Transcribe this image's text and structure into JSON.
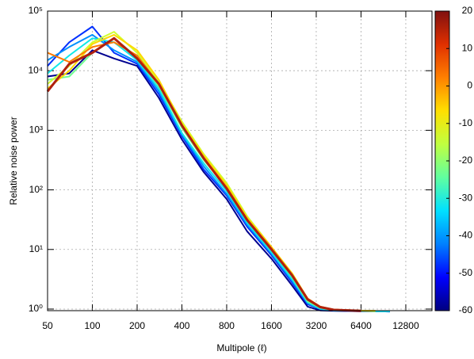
{
  "chart_data": {
    "type": "line",
    "xlabel": "Multipole (ℓ)",
    "ylabel": "Relative noise power",
    "log_x": true,
    "log_y": true,
    "grid": true,
    "xlim": [
      50,
      19200
    ],
    "ylim": [
      0.94,
      100000
    ],
    "xticks": [
      50,
      100,
      200,
      400,
      800,
      1600,
      3200,
      6400,
      12800
    ],
    "yticks": [
      {
        "value": 1,
        "label": "10⁰"
      },
      {
        "value": 10,
        "label": "10¹"
      },
      {
        "value": 100,
        "label": "10²"
      },
      {
        "value": 1000,
        "label": "10³"
      },
      {
        "value": 10000,
        "label": "10⁴"
      },
      {
        "value": 100000,
        "label": "10⁵"
      }
    ],
    "x": [
      50,
      70,
      100,
      140,
      200,
      280,
      400,
      560,
      800,
      1100,
      1600,
      2200,
      2800,
      3400,
      4200,
      6400,
      8000,
      10000
    ],
    "series": [
      {
        "color": "#00008f",
        "values": [
          8000,
          9000,
          22000,
          16000,
          12000,
          3500,
          700,
          200,
          70,
          20,
          7,
          2.5,
          1.1,
          0.95,
          0.93,
          0.92,
          0.92,
          0.91
        ]
      },
      {
        "color": "#0030ff",
        "values": [
          12000,
          30000,
          55000,
          20000,
          13000,
          4000,
          800,
          220,
          80,
          24,
          8,
          2.8,
          1.2,
          1.0,
          0.94,
          0.92,
          0.92,
          0.91
        ]
      },
      {
        "color": "#0090ff",
        "values": [
          15000,
          25000,
          40000,
          22000,
          14000,
          4500,
          850,
          250,
          85,
          26,
          8.5,
          3,
          1.25,
          1.0,
          0.95,
          0.93,
          0.92,
          0.92
        ]
      },
      {
        "color": "#10e8e8",
        "values": [
          9000,
          18000,
          35000,
          30000,
          15000,
          5000,
          900,
          280,
          95,
          28,
          9,
          3.2,
          1.3,
          1.02,
          0.95,
          0.93,
          0.92,
          0.92
        ]
      },
      {
        "color": "#70ff90",
        "values": [
          7000,
          8000,
          20000,
          35000,
          17000,
          5500,
          1100,
          320,
          110,
          32,
          10,
          3.5,
          1.35,
          1.05,
          0.96,
          0.93,
          0.92,
          null
        ]
      },
      {
        "color": "#d0ff30",
        "values": [
          6000,
          12000,
          30000,
          45000,
          20000,
          6500,
          1400,
          400,
          130,
          36,
          11,
          3.8,
          1.45,
          1.08,
          0.97,
          0.94,
          0.93,
          null
        ]
      },
      {
        "color": "#ffd800",
        "values": [
          5000,
          10000,
          28000,
          40000,
          22000,
          7000,
          1300,
          380,
          120,
          34,
          11,
          4,
          1.5,
          1.1,
          0.98,
          0.94,
          0.93,
          null
        ]
      },
      {
        "color": "#ff7a00",
        "values": [
          20000,
          14000,
          25000,
          30000,
          18000,
          6000,
          1200,
          350,
          110,
          32,
          10.5,
          3.8,
          1.5,
          1.1,
          0.98,
          0.94,
          null,
          null
        ]
      },
      {
        "color": "#b02010",
        "values": [
          4500,
          13000,
          20000,
          35000,
          16000,
          6000,
          1200,
          340,
          105,
          31,
          10,
          3.7,
          1.45,
          1.08,
          0.97,
          0.93,
          null,
          null
        ]
      }
    ],
    "colorbar": {
      "lim": [
        -60,
        20
      ],
      "ticks": [
        -60,
        -50,
        -40,
        -30,
        -20,
        -10,
        0,
        10,
        20
      ],
      "colors": [
        "#00007f",
        "#0000ff",
        "#0080ff",
        "#00e0ff",
        "#60ffa0",
        "#c0ff40",
        "#ffe000",
        "#ff8000",
        "#e03000",
        "#801010"
      ]
    }
  }
}
